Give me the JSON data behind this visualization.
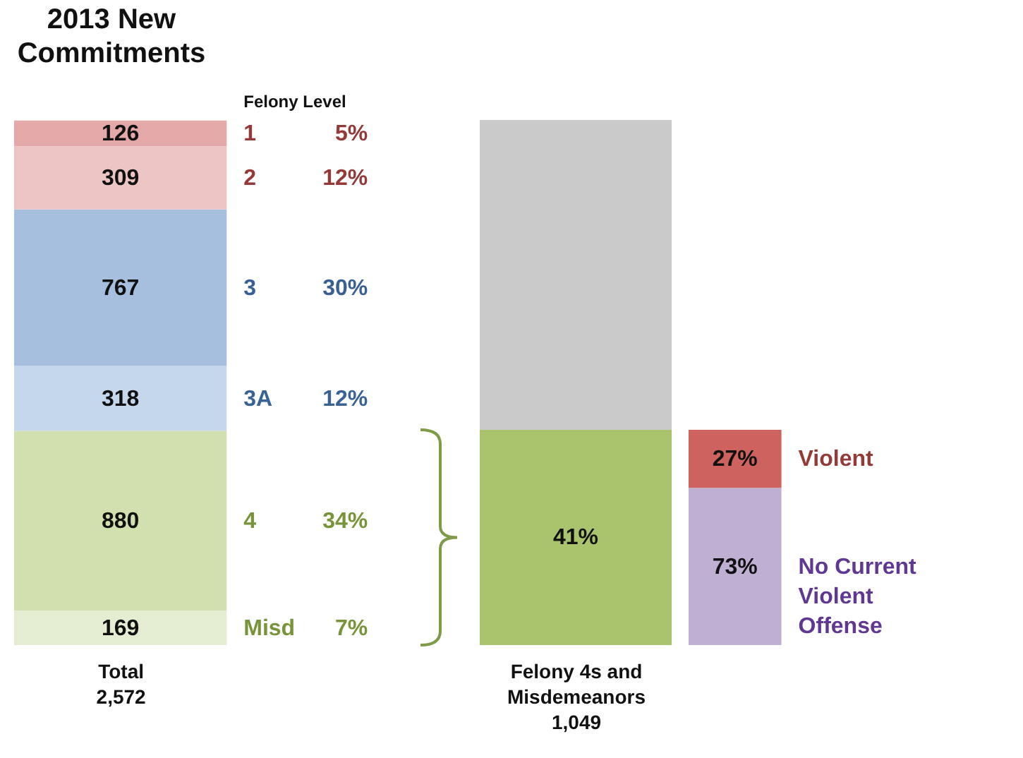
{
  "chart_data": [
    {
      "type": "bar",
      "stacked": true,
      "title": "2013 New Commitments",
      "legend_title": "Felony Level",
      "categories": [
        null
      ],
      "xlabel": "Total 2,572",
      "ylim": [
        0,
        2572
      ],
      "tick_labels": "x",
      "series": [
        {
          "name": "Misd",
          "color": "#e4ecd2",
          "values": [
            169
          ],
          "value_labels": [
            "169"
          ]
        },
        {
          "name": "4",
          "color": "#d2e0b0",
          "values": [
            880
          ],
          "value_labels": [
            "880"
          ]
        },
        {
          "name": "3A",
          "color": "#c5d7ec",
          "values": [
            318
          ],
          "value_labels": [
            "318"
          ]
        },
        {
          "name": "3",
          "color": "#a6bfdf",
          "values": [
            767
          ],
          "value_labels": [
            "767"
          ]
        },
        {
          "name": "2",
          "color": "#eec5c5",
          "values": [
            309
          ],
          "value_labels": [
            "309"
          ]
        },
        {
          "name": "1",
          "color": "#e4a8a8",
          "values": [
            126
          ],
          "value_labels": [
            "126"
          ]
        }
      ],
      "annotations": [
        "7%",
        "34%",
        "12%",
        "30%",
        "12%",
        "5%"
      ]
    },
    {
      "type": "bar",
      "stacked": true,
      "categories": [
        null
      ],
      "xlabel": "Felony 4s and Misdemeanors 1,049",
      "ylim": [
        0,
        100
      ],
      "tick_labels": "x",
      "series": [
        {
          "color": "#a9c46c",
          "values": [
            41
          ],
          "value_labels": [
            "41%"
          ]
        },
        {
          "color": "#cacaca",
          "values": [
            59
          ],
          "value_labels": [
            null
          ]
        }
      ]
    },
    {
      "type": "bar",
      "stacked": true,
      "categories": [
        null
      ],
      "ylim": [
        0,
        100
      ],
      "tick_labels": "x",
      "series": [
        {
          "name": "No Current Violent Offense",
          "color": "#bfb0d3",
          "values": [
            73
          ],
          "value_labels": [
            "73%"
          ]
        },
        {
          "name": "Violent",
          "color": "#cd625e",
          "values": [
            27
          ],
          "value_labels": [
            "27%"
          ]
        }
      ]
    }
  ]
}
